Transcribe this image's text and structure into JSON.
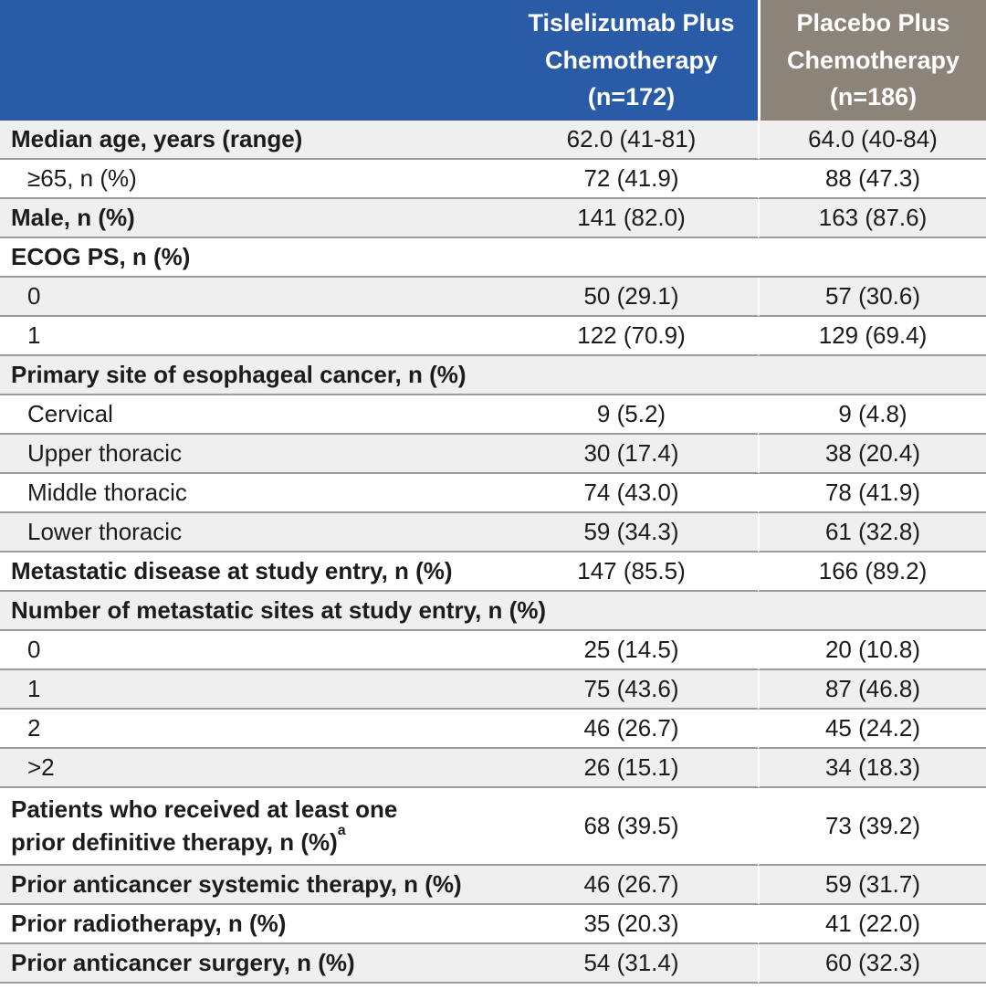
{
  "header": {
    "col1": {
      "lines": [
        "Tislelizumab Plus",
        "Chemotherapy",
        "(n=172)"
      ]
    },
    "col2": {
      "lines": [
        "Placebo Plus",
        "Chemotherapy",
        "(n=186)"
      ]
    }
  },
  "colors": {
    "header_blue": "#2a5ba6",
    "header_taupe": "#8c8379",
    "row_alt": "#efefef",
    "row_border": "#9b9b9b"
  },
  "rows": [
    {
      "label": "Median age, years (range)",
      "bold": true,
      "indent": false,
      "values": [
        "62.0 (41-81)",
        "64.0 (40-84)"
      ]
    },
    {
      "label": "≥65, n (%)",
      "bold": false,
      "indent": true,
      "values": [
        "72 (41.9)",
        "88 (47.3)"
      ]
    },
    {
      "label": "Male, n (%)",
      "bold": true,
      "indent": false,
      "values": [
        "141 (82.0)",
        "163 (87.6)"
      ]
    },
    {
      "label": "ECOG PS, n (%)",
      "bold": true,
      "indent": false,
      "span": true
    },
    {
      "label": "0",
      "bold": false,
      "indent": true,
      "values": [
        "50 (29.1)",
        "57 (30.6)"
      ]
    },
    {
      "label": "1",
      "bold": false,
      "indent": true,
      "values": [
        "122 (70.9)",
        "129 (69.4)"
      ]
    },
    {
      "label": "Primary site of esophageal cancer, n (%)",
      "bold": true,
      "indent": false,
      "span": true
    },
    {
      "label": "Cervical",
      "bold": false,
      "indent": true,
      "values": [
        "9 (5.2)",
        "9 (4.8)"
      ]
    },
    {
      "label": "Upper thoracic",
      "bold": false,
      "indent": true,
      "values": [
        "30 (17.4)",
        "38 (20.4)"
      ]
    },
    {
      "label": "Middle thoracic",
      "bold": false,
      "indent": true,
      "values": [
        "74 (43.0)",
        "78 (41.9)"
      ]
    },
    {
      "label": "Lower thoracic",
      "bold": false,
      "indent": true,
      "values": [
        "59 (34.3)",
        "61 (32.8)"
      ]
    },
    {
      "label": "Metastatic disease at study entry, n (%)",
      "bold": true,
      "indent": false,
      "values": [
        "147 (85.5)",
        "166 (89.2)"
      ]
    },
    {
      "label": "Number of metastatic sites at study entry, n (%)",
      "bold": true,
      "indent": false,
      "span": true
    },
    {
      "label": "0",
      "bold": false,
      "indent": true,
      "values": [
        "25 (14.5)",
        "20 (10.8)"
      ]
    },
    {
      "label": "1",
      "bold": false,
      "indent": true,
      "values": [
        "75 (43.6)",
        "87 (46.8)"
      ]
    },
    {
      "label": "2",
      "bold": false,
      "indent": true,
      "values": [
        "46 (26.7)",
        "45 (24.2)"
      ]
    },
    {
      "label": ">2",
      "bold": false,
      "indent": true,
      "values": [
        "26 (15.1)",
        "34 (18.3)"
      ]
    },
    {
      "label": "Patients who received at least one",
      "label2": "prior definitive therapy, n (%)",
      "sup": "a",
      "bold": true,
      "indent": false,
      "tall": true,
      "values": [
        "68 (39.5)",
        "73 (39.2)"
      ]
    },
    {
      "label": "Prior anticancer systemic therapy, n (%)",
      "bold": true,
      "indent": false,
      "values": [
        "46 (26.7)",
        "59 (31.7)"
      ]
    },
    {
      "label": "Prior radiotherapy, n (%)",
      "bold": true,
      "indent": false,
      "values": [
        "35 (20.3)",
        "41 (22.0)"
      ]
    },
    {
      "label": "Prior anticancer surgery, n (%)",
      "bold": true,
      "indent": false,
      "values": [
        "54 (31.4)",
        "60 (32.3)"
      ]
    }
  ]
}
